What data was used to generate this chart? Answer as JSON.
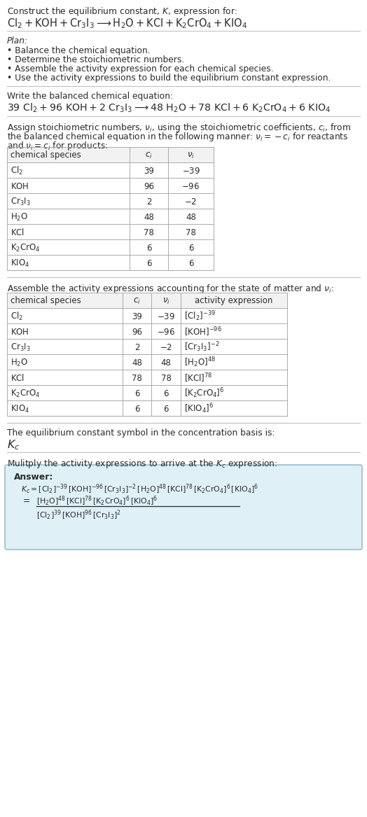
{
  "bg_color": "#ffffff",
  "text_color": "#383838",
  "title_line1": "Construct the equilibrium constant, $K$, expression for:",
  "title_line2_plain": "Cl",
  "plan_header": "Plan:",
  "plan_bullets": [
    "• Balance the chemical equation.",
    "• Determine the stoichiometric numbers.",
    "• Assemble the activity expression for each chemical species.",
    "• Use the activity expressions to build the equilibrium constant expression."
  ],
  "balanced_header": "Write the balanced chemical equation:",
  "stoich_intro1": "Assign stoichiometric numbers, $\\nu_i$, using the stoichiometric coefficients, $c_i$, from",
  "stoich_intro2": "the balanced chemical equation in the following manner: $\\nu_i = -c_i$ for reactants",
  "stoich_intro3": "and $\\nu_i = c_i$ for products:",
  "table1_col_headers": [
    "chemical species",
    "$c_i$",
    "$\\nu_i$"
  ],
  "table1_rows": [
    [
      "$\\mathrm{Cl_2}$",
      "39",
      "$-39$"
    ],
    [
      "$\\mathrm{KOH}$",
      "96",
      "$-96$"
    ],
    [
      "$\\mathrm{Cr_3I_3}$",
      "2",
      "$-2$"
    ],
    [
      "$\\mathrm{H_2O}$",
      "48",
      "48"
    ],
    [
      "$\\mathrm{KCl}$",
      "78",
      "78"
    ],
    [
      "$\\mathrm{K_2CrO_4}$",
      "6",
      "6"
    ],
    [
      "$\\mathrm{KIO_4}$",
      "6",
      "6"
    ]
  ],
  "activity_intro": "Assemble the activity expressions accounting for the state of matter and $\\nu_i$:",
  "table2_col_headers": [
    "chemical species",
    "$c_i$",
    "$\\nu_i$",
    "activity expression"
  ],
  "table2_rows": [
    [
      "$\\mathrm{Cl_2}$",
      "39",
      "$-39$",
      "$[\\mathrm{Cl_2}]^{-39}$"
    ],
    [
      "$\\mathrm{KOH}$",
      "96",
      "$-96$",
      "$[\\mathrm{KOH}]^{-96}$"
    ],
    [
      "$\\mathrm{Cr_3I_3}$",
      "2",
      "$-2$",
      "$[\\mathrm{Cr_3I_3}]^{-2}$"
    ],
    [
      "$\\mathrm{H_2O}$",
      "48",
      "48",
      "$[\\mathrm{H_2O}]^{48}$"
    ],
    [
      "$\\mathrm{KCl}$",
      "78",
      "78",
      "$[\\mathrm{KCl}]^{78}$"
    ],
    [
      "$\\mathrm{K_2CrO_4}$",
      "6",
      "6",
      "$[\\mathrm{K_2CrO_4}]^{6}$"
    ],
    [
      "$\\mathrm{KIO_4}$",
      "6",
      "6",
      "$[\\mathrm{KIO_4}]^{6}$"
    ]
  ],
  "kc_intro": "The equilibrium constant symbol in the concentration basis is:",
  "kc_symbol": "$K_c$",
  "multiply_intro": "Mulitply the activity expressions to arrive at the $K_c$ expression:",
  "answer_label": "Answer:",
  "answer_eq_line1": "$K_c = [\\mathrm{Cl_2}]^{-39}\\,[\\mathrm{KOH}]^{-96}\\,[\\mathrm{Cr_3I_3}]^{-2}\\,[\\mathrm{H_2O}]^{48}\\,[\\mathrm{KCl}]^{78}\\,[\\mathrm{K_2CrO_4}]^{6}\\,[\\mathrm{KIO_4}]^{6}$",
  "answer_num": "$[\\mathrm{H_2O}]^{48}\\,[\\mathrm{KCl}]^{78}\\,[\\mathrm{K_2CrO_4}]^{6}\\,[\\mathrm{KIO_4}]^{6}$",
  "answer_den": "$[\\mathrm{Cl_2}]^{39}\\,[\\mathrm{KOH}]^{96}\\,[\\mathrm{Cr_3I_3}]^{2}$",
  "answer_box_bg": "#dff0f7",
  "answer_box_border": "#8ab4c8",
  "table_line_color": "#aaaaaa",
  "sep_line_color": "#bbbbbb",
  "font_color": "#2a2a2a"
}
